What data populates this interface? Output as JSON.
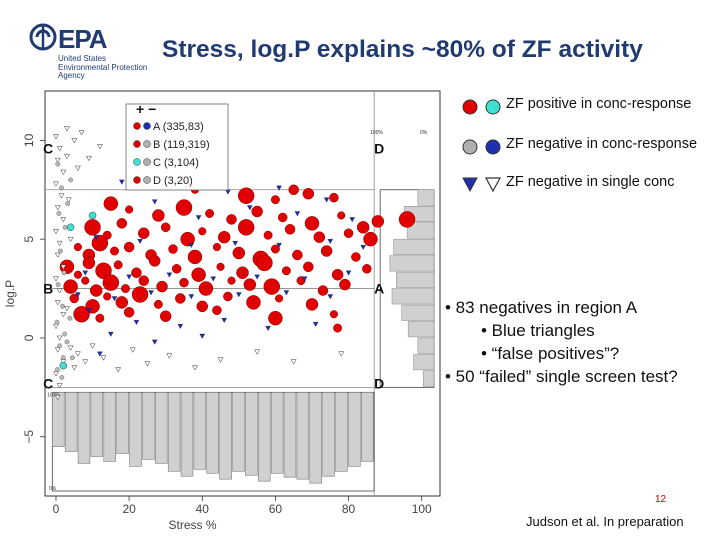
{
  "logo": {
    "name": "EPA",
    "subtitle": [
      "United States",
      "Environmental Protection",
      "Agency"
    ]
  },
  "title": "Stress, log.P explains ~80% of ZF activity",
  "legend_right": {
    "items": [
      {
        "label": "ZF positive in conc-response",
        "colors": [
          "#e00000",
          "#40e0d0"
        ],
        "shape": "circle"
      },
      {
        "label": "ZF negative in conc-response",
        "colors": [
          "#b0b0b0",
          "#1f2fb0"
        ],
        "shape": "circle"
      },
      {
        "label": "ZF negative in single conc",
        "colors": [
          "#1f2fb0",
          "#ffffff"
        ],
        "shape": "triangle"
      }
    ]
  },
  "bullets": [
    {
      "text": "• 83 negatives in region A",
      "indent": false
    },
    {
      "text": "• Blue triangles",
      "indent": true
    },
    {
      "text": "• “false positives”?",
      "indent": true
    },
    {
      "text": "• 50 “failed” single screen test?",
      "indent": false
    }
  ],
  "page_number": "12",
  "citation": "Judson et al. In preparation",
  "chart_data": {
    "type": "scatter",
    "xlabel": "Stress %",
    "ylabel": "log.P",
    "xlim": [
      -3,
      105
    ],
    "ylim": [
      -8,
      12.5
    ],
    "xticks": [
      0,
      20,
      40,
      60,
      80,
      100
    ],
    "yticks": [
      -5,
      0,
      5,
      10
    ],
    "hlines": [
      2.5,
      -2.5,
      7.5
    ],
    "vline": 87,
    "inset_legend": {
      "header": "+ −",
      "entries": [
        {
          "label": "A (335,83)",
          "colors": [
            "#e00000",
            "#1f2fb0"
          ]
        },
        {
          "label": "B (119,319)",
          "colors": [
            "#e00000",
            "#b0b0b0"
          ]
        },
        {
          "label": "C (3,104)",
          "colors": [
            "#40e0d0",
            "#b0b0b0"
          ]
        },
        {
          "label": "D (3,20)",
          "colors": [
            "#e00000",
            "#b0b0b0"
          ]
        }
      ]
    },
    "region_labels": [
      {
        "text": "C",
        "x": -3.5,
        "y": 9.6
      },
      {
        "text": "D",
        "x": 87,
        "y": 9.6
      },
      {
        "text": "B",
        "x": -3.5,
        "y": 2.5
      },
      {
        "text": "A",
        "x": 87,
        "y": 2.5
      },
      {
        "text": "C",
        "x": -3.5,
        "y": -2.3
      },
      {
        "text": "D",
        "x": 87,
        "y": -2.3
      }
    ],
    "marginal_labels": {
      "top_left": "100%",
      "top_right": "0%",
      "bottom_top": "100%",
      "bottom_bottom": "0%"
    },
    "marginal_right": {
      "bins": [
        7.2,
        6.5,
        5.8,
        5.1,
        4.4,
        3.7,
        3.0,
        2.3,
        1.6,
        0.9,
        0.2,
        -0.5
      ],
      "values": [
        0.3,
        0.55,
        0.5,
        0.75,
        0.82,
        0.7,
        0.78,
        0.6,
        0.48,
        0.3,
        0.38,
        0.2
      ]
    },
    "marginal_bottom": {
      "bins": [
        2,
        6,
        10,
        14,
        18,
        22,
        26,
        30,
        34,
        38,
        42,
        46,
        50,
        54,
        58,
        62,
        66,
        70,
        74,
        78,
        82,
        86,
        90,
        94,
        98
      ],
      "values": [
        0.55,
        0.6,
        0.72,
        0.65,
        0.7,
        0.62,
        0.75,
        0.68,
        0.72,
        0.8,
        0.85,
        0.78,
        0.82,
        0.88,
        0.8,
        0.84,
        0.9,
        0.82,
        0.86,
        0.88,
        0.92,
        0.85,
        0.8,
        0.75,
        0.7
      ]
    },
    "series": [
      {
        "kind": "red_circle",
        "points": [
          [
            22,
            8.8
          ],
          [
            25,
            8.2
          ],
          [
            30,
            7.9
          ],
          [
            38,
            7.5
          ],
          [
            45,
            7.8
          ],
          [
            52,
            7.2
          ],
          [
            60,
            7.0
          ],
          [
            65,
            7.5
          ],
          [
            69,
            7.3
          ],
          [
            76,
            7.1
          ],
          [
            15,
            6.8
          ],
          [
            20,
            6.5
          ],
          [
            28,
            6.2
          ],
          [
            35,
            6.6
          ],
          [
            42,
            6.3
          ],
          [
            48,
            6.0
          ],
          [
            55,
            6.4
          ],
          [
            62,
            6.1
          ],
          [
            70,
            5.8
          ],
          [
            78,
            6.2
          ],
          [
            84,
            5.6
          ],
          [
            10,
            5.6
          ],
          [
            14,
            5.2
          ],
          [
            18,
            5.8
          ],
          [
            24,
            5.3
          ],
          [
            30,
            5.6
          ],
          [
            36,
            5.0
          ],
          [
            40,
            5.4
          ],
          [
            46,
            5.1
          ],
          [
            52,
            5.6
          ],
          [
            58,
            5.2
          ],
          [
            64,
            5.5
          ],
          [
            72,
            5.1
          ],
          [
            80,
            5.3
          ],
          [
            86,
            5.0
          ],
          [
            6,
            4.6
          ],
          [
            9,
            4.2
          ],
          [
            12,
            4.8
          ],
          [
            16,
            4.4
          ],
          [
            20,
            4.6
          ],
          [
            26,
            4.2
          ],
          [
            32,
            4.5
          ],
          [
            38,
            4.1
          ],
          [
            44,
            4.6
          ],
          [
            50,
            4.3
          ],
          [
            56,
            4.0
          ],
          [
            60,
            4.5
          ],
          [
            66,
            4.2
          ],
          [
            74,
            4.4
          ],
          [
            82,
            4.1
          ],
          [
            3,
            3.6
          ],
          [
            6,
            3.2
          ],
          [
            9,
            3.8
          ],
          [
            13,
            3.4
          ],
          [
            17,
            3.7
          ],
          [
            22,
            3.3
          ],
          [
            27,
            3.9
          ],
          [
            33,
            3.5
          ],
          [
            39,
            3.2
          ],
          [
            45,
            3.6
          ],
          [
            51,
            3.3
          ],
          [
            57,
            3.8
          ],
          [
            63,
            3.4
          ],
          [
            69,
            3.6
          ],
          [
            77,
            3.2
          ],
          [
            85,
            3.5
          ],
          [
            4,
            2.6
          ],
          [
            8,
            2.9
          ],
          [
            11,
            2.4
          ],
          [
            15,
            2.8
          ],
          [
            19,
            2.5
          ],
          [
            24,
            2.9
          ],
          [
            29,
            2.6
          ],
          [
            35,
            2.8
          ],
          [
            41,
            2.5
          ],
          [
            48,
            2.9
          ],
          [
            53,
            2.7
          ],
          [
            59,
            2.6
          ],
          [
            67,
            2.9
          ],
          [
            73,
            2.4
          ],
          [
            79,
            2.7
          ],
          [
            5,
            2.0
          ],
          [
            10,
            1.6
          ],
          [
            14,
            2.1
          ],
          [
            18,
            1.8
          ],
          [
            23,
            2.2
          ],
          [
            28,
            1.7
          ],
          [
            34,
            2.0
          ],
          [
            40,
            1.6
          ],
          [
            47,
            2.1
          ],
          [
            54,
            1.8
          ],
          [
            61,
            2.0
          ],
          [
            70,
            1.7
          ],
          [
            7,
            1.2
          ],
          [
            12,
            1.0
          ],
          [
            20,
            1.3
          ],
          [
            30,
            1.1
          ],
          [
            44,
            1.4
          ],
          [
            60,
            1.0
          ],
          [
            76,
            1.2
          ],
          [
            88,
            5.9
          ],
          [
            96,
            6.0
          ],
          [
            77,
            0.5
          ]
        ]
      },
      {
        "kind": "blue_triangle",
        "points": [
          [
            18,
            7.9
          ],
          [
            33,
            7.6
          ],
          [
            47,
            7.4
          ],
          [
            61,
            7.6
          ],
          [
            74,
            7.0
          ],
          [
            27,
            6.9
          ],
          [
            39,
            6.1
          ],
          [
            53,
            6.6
          ],
          [
            66,
            6.3
          ],
          [
            81,
            6.0
          ],
          [
            11,
            5.1
          ],
          [
            23,
            4.9
          ],
          [
            37,
            4.7
          ],
          [
            49,
            4.8
          ],
          [
            61,
            4.7
          ],
          [
            75,
            4.9
          ],
          [
            84,
            4.6
          ],
          [
            8,
            3.3
          ],
          [
            20,
            3.1
          ],
          [
            31,
            3.2
          ],
          [
            43,
            3.0
          ],
          [
            55,
            3.1
          ],
          [
            68,
            3.0
          ],
          [
            80,
            3.3
          ],
          [
            6,
            2.2
          ],
          [
            16,
            2.0
          ],
          [
            26,
            2.3
          ],
          [
            37,
            2.1
          ],
          [
            50,
            2.2
          ],
          [
            63,
            2.3
          ],
          [
            75,
            2.1
          ],
          [
            9,
            1.4
          ],
          [
            22,
            0.8
          ],
          [
            34,
            0.6
          ],
          [
            46,
            0.9
          ],
          [
            58,
            0.5
          ],
          [
            71,
            0.7
          ],
          [
            15,
            0.2
          ],
          [
            27,
            -0.2
          ],
          [
            40,
            0.1
          ],
          [
            12,
            -0.8
          ]
        ]
      },
      {
        "kind": "white_triangle",
        "points": [
          [
            0,
            10.2
          ],
          [
            1,
            9.6
          ],
          [
            0.5,
            9.0
          ],
          [
            2,
            8.4
          ],
          [
            0,
            7.8
          ],
          [
            1.5,
            7.2
          ],
          [
            0.5,
            6.6
          ],
          [
            2,
            6.0
          ],
          [
            0,
            5.4
          ],
          [
            1,
            4.8
          ],
          [
            0.5,
            4.2
          ],
          [
            2,
            3.6
          ],
          [
            0,
            3.0
          ],
          [
            1,
            2.4
          ],
          [
            0.5,
            1.8
          ],
          [
            2,
            1.2
          ],
          [
            0,
            0.6
          ],
          [
            1,
            0.0
          ],
          [
            0.5,
            -0.6
          ],
          [
            2,
            -1.2
          ],
          [
            0,
            -1.8
          ],
          [
            1,
            -2.4
          ],
          [
            0.5,
            -3.0
          ],
          [
            3,
            9.2
          ],
          [
            3.5,
            7.0
          ],
          [
            4,
            5.0
          ],
          [
            3,
            1.5
          ],
          [
            4,
            -0.5
          ],
          [
            5,
            -1.5
          ],
          [
            6,
            -0.8
          ],
          [
            8,
            -1.2
          ],
          [
            10,
            -0.4
          ],
          [
            13,
            -1.0
          ],
          [
            17,
            -1.6
          ],
          [
            21,
            -0.6
          ],
          [
            25,
            -1.3
          ],
          [
            31,
            -0.9
          ],
          [
            38,
            -1.5
          ],
          [
            45,
            -1.1
          ],
          [
            55,
            -0.7
          ],
          [
            65,
            -1.2
          ],
          [
            78,
            -0.8
          ],
          [
            3,
            10.6
          ],
          [
            5,
            10.0
          ],
          [
            7,
            10.4
          ],
          [
            12,
            9.7
          ],
          [
            6,
            8.6
          ],
          [
            9,
            9.1
          ]
        ]
      },
      {
        "kind": "gray_circle",
        "points": [
          [
            0.5,
            8.8
          ],
          [
            1.5,
            7.6
          ],
          [
            0.8,
            6.3
          ],
          [
            2.5,
            5.6
          ],
          [
            1.2,
            4.4
          ],
          [
            2.2,
            3.3
          ],
          [
            0.6,
            2.7
          ],
          [
            1.8,
            1.6
          ],
          [
            0.3,
            0.8
          ],
          [
            2.4,
            0.2
          ],
          [
            1.0,
            -0.4
          ],
          [
            2.0,
            -1.0
          ],
          [
            0.4,
            -1.6
          ],
          [
            1.6,
            -2.0
          ],
          [
            3.0,
            -0.2
          ],
          [
            3.8,
            1.0
          ],
          [
            4.5,
            -1.0
          ],
          [
            3.2,
            6.8
          ],
          [
            4.0,
            8.0
          ]
        ]
      },
      {
        "kind": "cyan_circle",
        "points": [
          [
            10,
            6.2
          ],
          [
            4,
            5.6
          ],
          [
            2,
            -1.4
          ]
        ]
      }
    ]
  }
}
